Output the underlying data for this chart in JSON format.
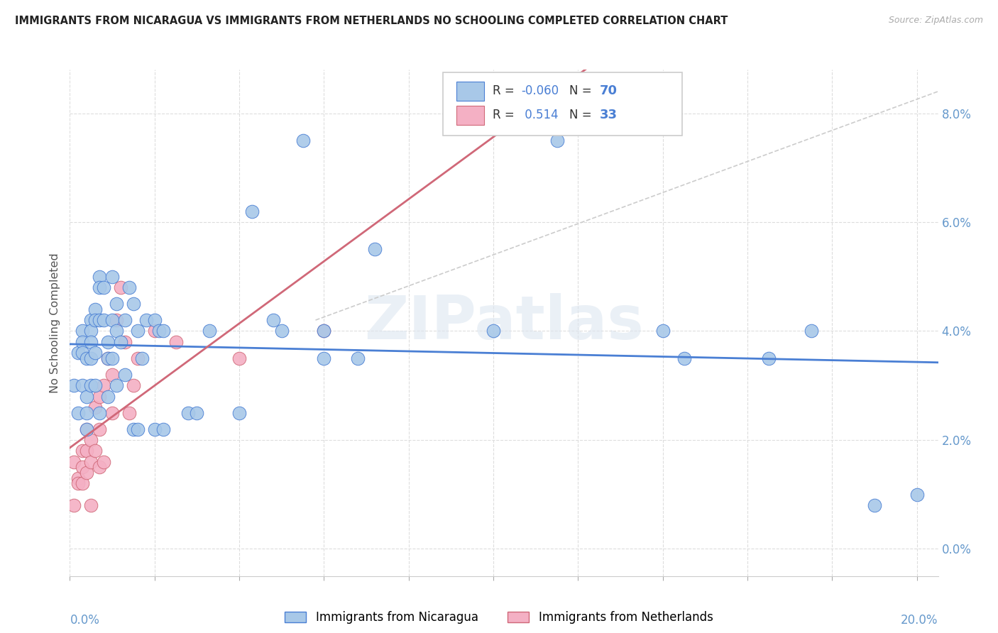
{
  "title": "IMMIGRANTS FROM NICARAGUA VS IMMIGRANTS FROM NETHERLANDS NO SCHOOLING COMPLETED CORRELATION CHART",
  "source": "Source: ZipAtlas.com",
  "ylabel": "No Schooling Completed",
  "xlim": [
    0.0,
    0.205
  ],
  "ylim": [
    -0.005,
    0.088
  ],
  "color_nicaragua": "#a8c8e8",
  "color_netherlands": "#f4b0c4",
  "trendline_color_nicaragua": "#4a7fd4",
  "trendline_color_netherlands": "#d06878",
  "trendline_dashed_color": "#cccccc",
  "axis_label_color": "#6699cc",
  "bg_color": "#ffffff",
  "grid_color": "#dddddd",
  "ytick_vals": [
    0.0,
    0.02,
    0.04,
    0.06,
    0.08
  ],
  "xtick_vals": [
    0.0,
    0.02,
    0.04,
    0.06,
    0.08,
    0.1,
    0.12,
    0.14,
    0.16,
    0.18,
    0.2
  ],
  "nicaragua_x": [
    0.001,
    0.002,
    0.002,
    0.003,
    0.003,
    0.003,
    0.003,
    0.004,
    0.004,
    0.004,
    0.004,
    0.005,
    0.005,
    0.005,
    0.005,
    0.005,
    0.006,
    0.006,
    0.006,
    0.006,
    0.007,
    0.007,
    0.007,
    0.007,
    0.008,
    0.008,
    0.009,
    0.009,
    0.009,
    0.01,
    0.01,
    0.01,
    0.011,
    0.011,
    0.011,
    0.012,
    0.013,
    0.013,
    0.014,
    0.015,
    0.015,
    0.016,
    0.016,
    0.017,
    0.018,
    0.02,
    0.02,
    0.021,
    0.022,
    0.022,
    0.028,
    0.03,
    0.033,
    0.04,
    0.043,
    0.048,
    0.05,
    0.055,
    0.06,
    0.06,
    0.068,
    0.072,
    0.1,
    0.115,
    0.14,
    0.145,
    0.165,
    0.175,
    0.19,
    0.2
  ],
  "nicaragua_y": [
    0.03,
    0.036,
    0.025,
    0.04,
    0.038,
    0.036,
    0.03,
    0.035,
    0.028,
    0.025,
    0.022,
    0.042,
    0.04,
    0.038,
    0.035,
    0.03,
    0.044,
    0.042,
    0.036,
    0.03,
    0.05,
    0.048,
    0.042,
    0.025,
    0.048,
    0.042,
    0.038,
    0.035,
    0.028,
    0.05,
    0.042,
    0.035,
    0.045,
    0.04,
    0.03,
    0.038,
    0.042,
    0.032,
    0.048,
    0.045,
    0.022,
    0.04,
    0.022,
    0.035,
    0.042,
    0.042,
    0.022,
    0.04,
    0.04,
    0.022,
    0.025,
    0.025,
    0.04,
    0.025,
    0.062,
    0.042,
    0.04,
    0.075,
    0.04,
    0.035,
    0.035,
    0.055,
    0.04,
    0.075,
    0.04,
    0.035,
    0.035,
    0.04,
    0.008,
    0.01
  ],
  "netherlands_x": [
    0.001,
    0.001,
    0.002,
    0.002,
    0.003,
    0.003,
    0.003,
    0.004,
    0.004,
    0.004,
    0.005,
    0.005,
    0.005,
    0.006,
    0.006,
    0.007,
    0.007,
    0.007,
    0.008,
    0.008,
    0.009,
    0.01,
    0.01,
    0.011,
    0.012,
    0.013,
    0.014,
    0.015,
    0.016,
    0.02,
    0.025,
    0.04,
    0.06
  ],
  "netherlands_y": [
    0.008,
    0.016,
    0.013,
    0.012,
    0.018,
    0.015,
    0.012,
    0.022,
    0.018,
    0.014,
    0.02,
    0.016,
    0.008,
    0.026,
    0.018,
    0.028,
    0.022,
    0.015,
    0.03,
    0.016,
    0.035,
    0.032,
    0.025,
    0.042,
    0.048,
    0.038,
    0.025,
    0.03,
    0.035,
    0.04,
    0.038,
    0.035,
    0.04
  ],
  "watermark": "ZIPatlas",
  "watermark_color": "#dde6f0",
  "legend_r1_val": "-0.060",
  "legend_n1_val": "70",
  "legend_r2_val": "0.514",
  "legend_n2_val": "33",
  "legend_text_color": "#333333",
  "legend_rn_color": "#5588cc",
  "legend_n_color": "#333333"
}
